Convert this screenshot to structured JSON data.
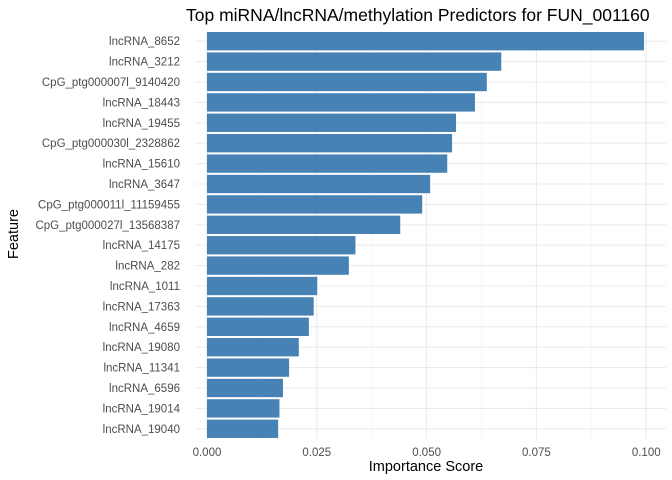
{
  "chart_data": {
    "type": "bar",
    "orientation": "horizontal",
    "title": "Top miRNA/lncRNA/methylation Predictors for FUN_001160",
    "xlabel": "Importance Score",
    "ylabel": "Feature",
    "xlim": [
      -0.0025,
      0.1045
    ],
    "xticks": [
      "0.000",
      "0.025",
      "0.050",
      "0.075",
      "0.100"
    ],
    "grid": true,
    "bar_color": "#4682B4",
    "categories": [
      "lncRNA_8652",
      "lncRNA_3212",
      "CpG_ptg000007l_9140420",
      "lncRNA_18443",
      "lncRNA_19455",
      "CpG_ptg000030l_2328862",
      "lncRNA_15610",
      "lncRNA_3647",
      "CpG_ptg000011l_11159455",
      "CpG_ptg000027l_13568387",
      "lncRNA_14175",
      "lncRNA_282",
      "lncRNA_1011",
      "lncRNA_17363",
      "lncRNA_4659",
      "lncRNA_19080",
      "lncRNA_11341",
      "lncRNA_6596",
      "lncRNA_19014",
      "lncRNA_19040"
    ],
    "values": [
      0.0995,
      0.067,
      0.0637,
      0.061,
      0.0567,
      0.0558,
      0.0547,
      0.0508,
      0.049,
      0.044,
      0.0338,
      0.0323,
      0.0251,
      0.0243,
      0.0232,
      0.0209,
      0.0187,
      0.0173,
      0.0165,
      0.0162
    ]
  }
}
